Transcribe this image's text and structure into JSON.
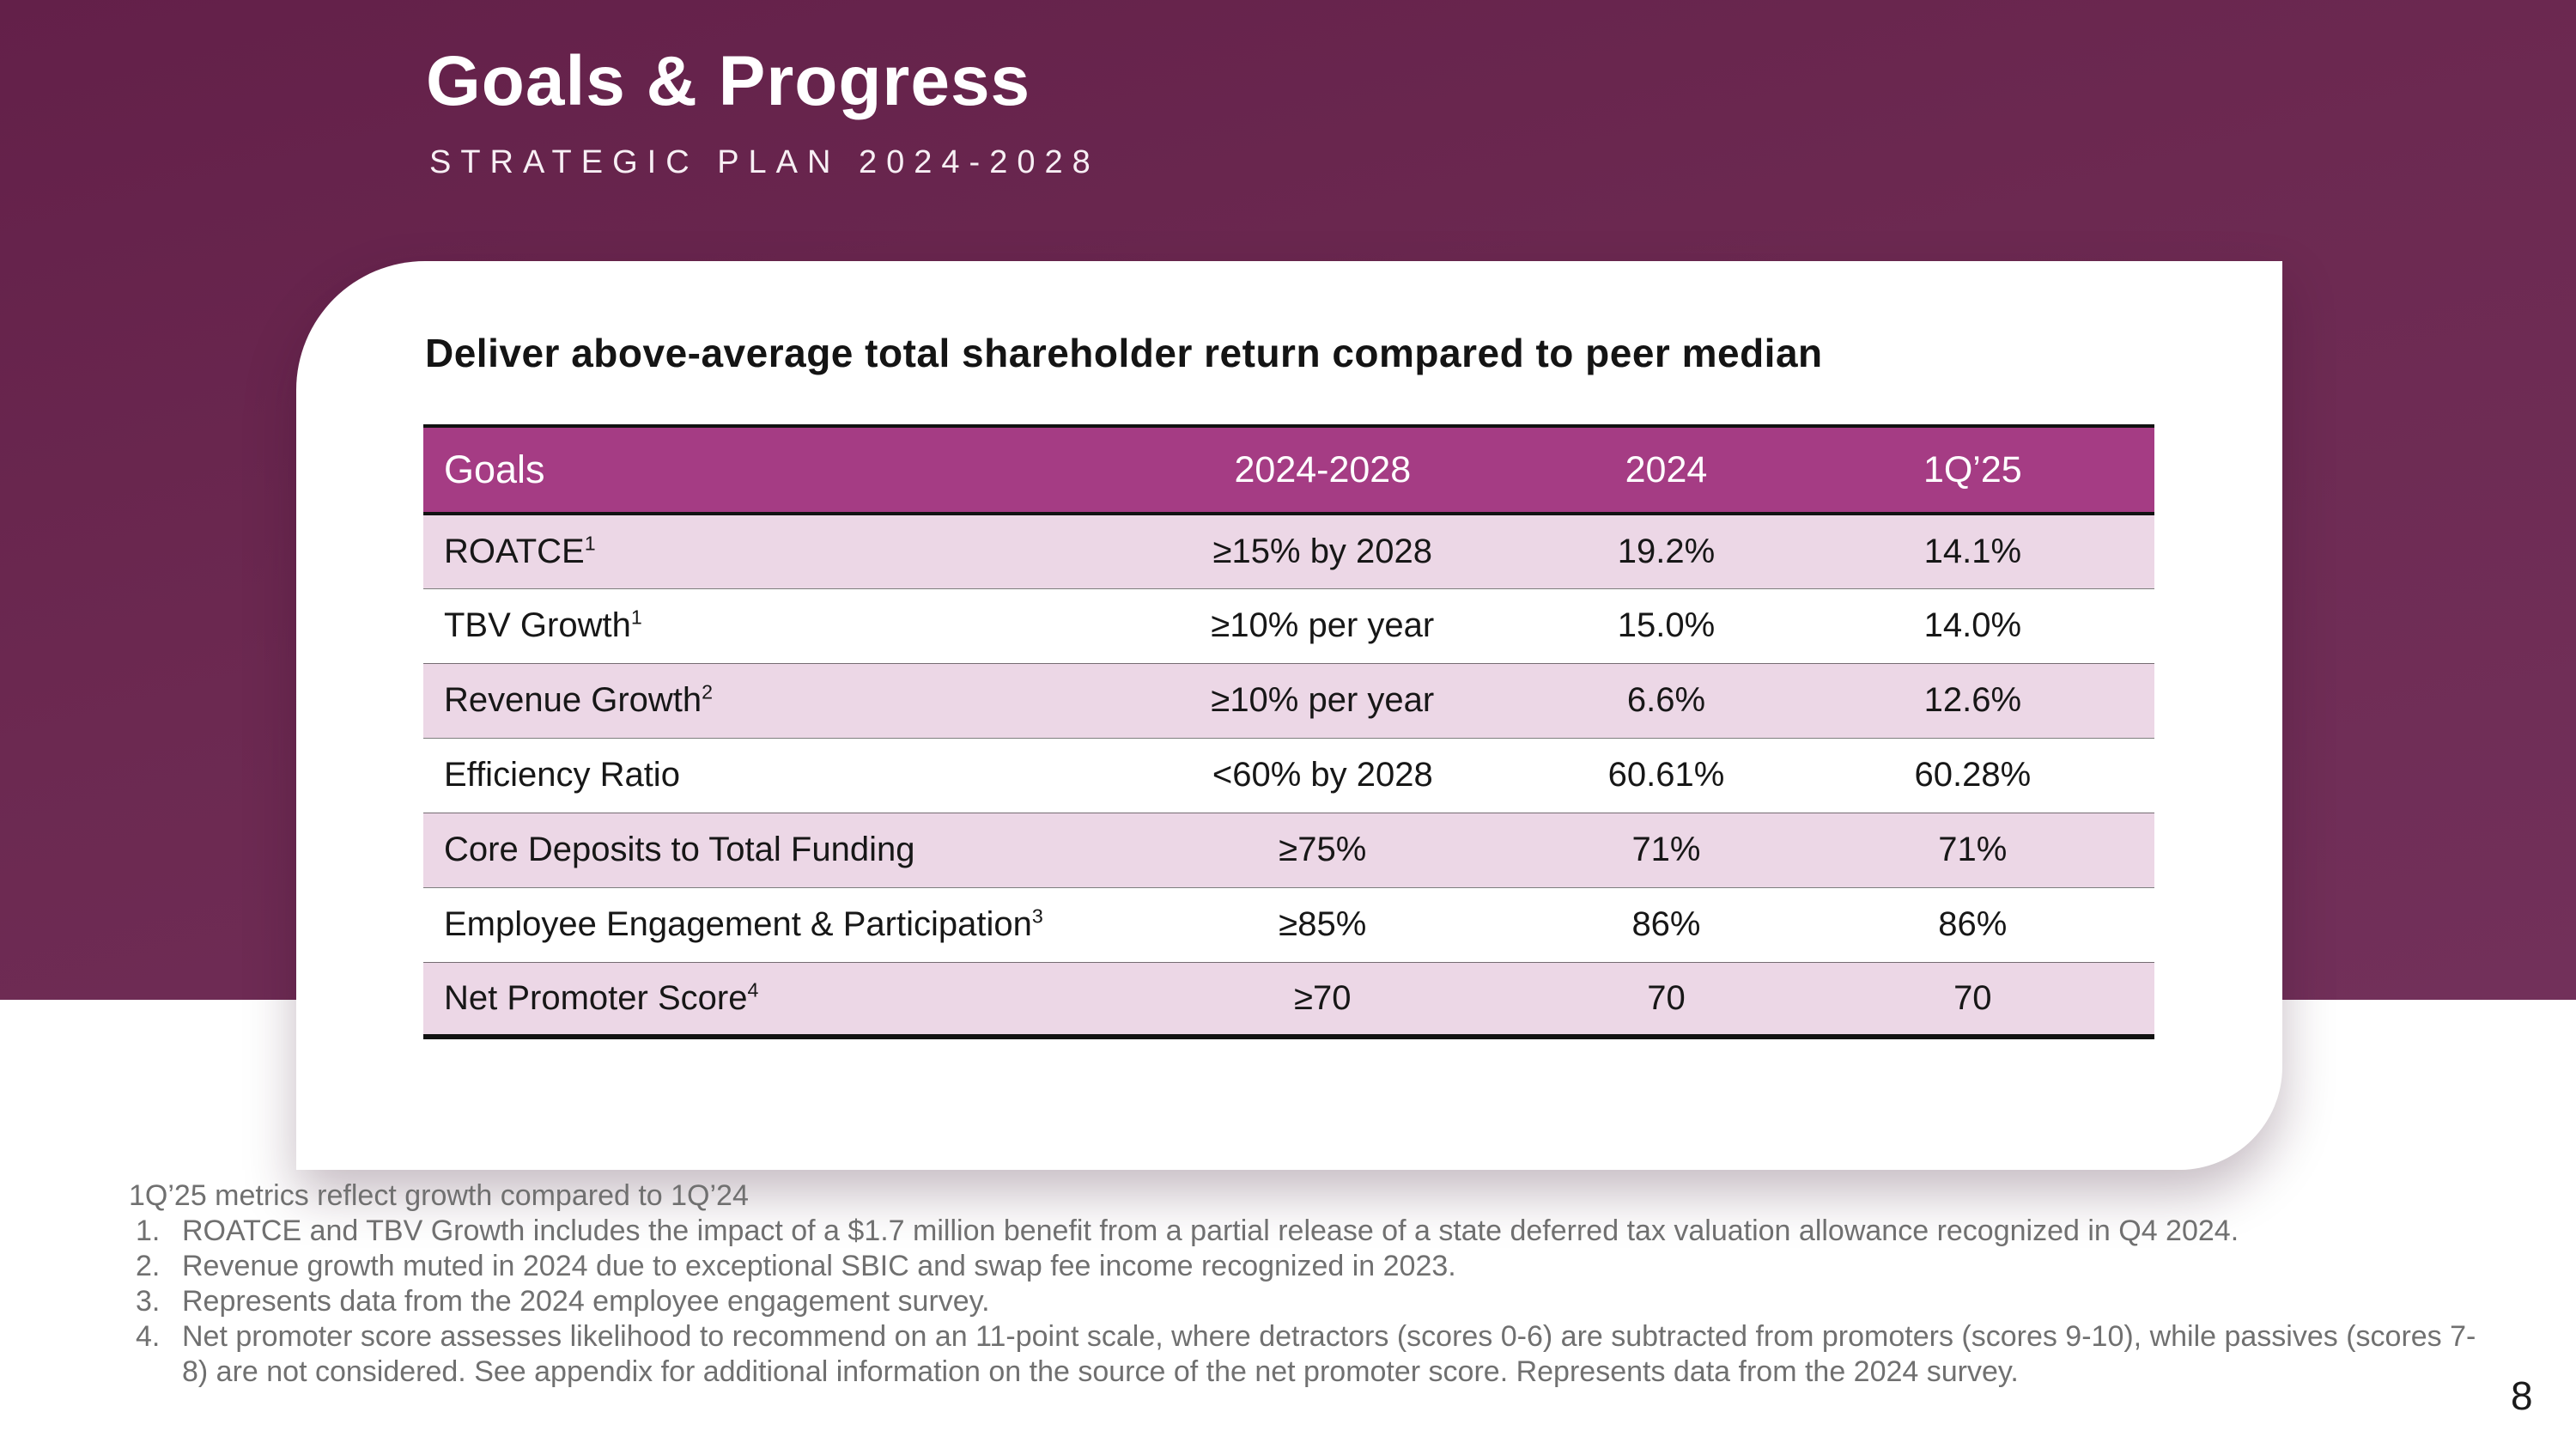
{
  "slide": {
    "title": "Goals & Progress",
    "subtitle": "STRATEGIC PLAN 2024-2028",
    "page_number": "8"
  },
  "card": {
    "heading": "Deliver above-average total shareholder return compared to peer median"
  },
  "table": {
    "columns": [
      "Goals",
      "2024-2028",
      "2024",
      "1Q’25"
    ],
    "rows": [
      {
        "label": "ROATCE",
        "sup": "1",
        "target": "≥15% by 2028",
        "y2024": "19.2%",
        "q1_25": "14.1%"
      },
      {
        "label": "TBV Growth",
        "sup": "1",
        "target": "≥10% per year",
        "y2024": "15.0%",
        "q1_25": "14.0%"
      },
      {
        "label": "Revenue Growth",
        "sup": "2",
        "target": "≥10% per year",
        "y2024": "6.6%",
        "q1_25": "12.6%"
      },
      {
        "label": "Efficiency Ratio",
        "sup": "",
        "target": "<60% by 2028",
        "y2024": "60.61%",
        "q1_25": "60.28%"
      },
      {
        "label": "Core Deposits to Total Funding",
        "sup": "",
        "target": "≥75%",
        "y2024": "71%",
        "q1_25": "71%"
      },
      {
        "label": "Employee Engagement & Participation",
        "sup": "3",
        "target": "≥85%",
        "y2024": "86%",
        "q1_25": "86%"
      },
      {
        "label": "Net Promoter Score",
        "sup": "4",
        "target": "≥70",
        "y2024": "70",
        "q1_25": "70"
      }
    ]
  },
  "footnotes": {
    "intro": "1Q’25 metrics reflect growth compared to 1Q’24",
    "items": [
      {
        "num": "1.",
        "text": "ROATCE and TBV Growth includes the impact of a $1.7 million benefit from a partial release of a state deferred tax valuation allowance recognized in Q4 2024."
      },
      {
        "num": "2.",
        "text": "Revenue growth muted in 2024 due to exceptional SBIC and swap fee income recognized in 2023."
      },
      {
        "num": "3.",
        "text": "Represents data from the 2024 employee engagement survey."
      },
      {
        "num": "4.",
        "text": "Net promoter score assesses likelihood to recommend on an 11-point scale, where detractors (scores 0-6) are subtracted from promoters (scores 9-10), while passives (scores 7-8) are not considered. See appendix for additional information on the source of the net promoter score. Represents data from the 2024 survey."
      }
    ]
  },
  "colors": {
    "background_purple": "#6C2951",
    "header_magenta": "#A53C84",
    "row_pink": "#ECD7E6",
    "footnote_gray": "#707070"
  }
}
